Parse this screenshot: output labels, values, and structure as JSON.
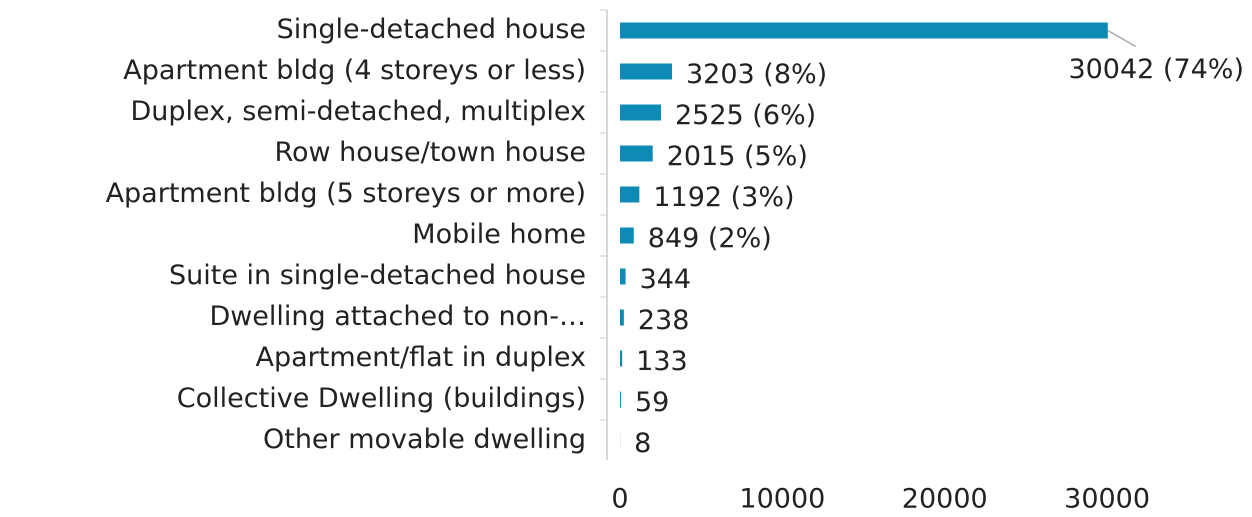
{
  "chart_data": {
    "type": "bar",
    "orientation": "horizontal",
    "categories": [
      "Single-detached house",
      "Apartment bldg (4 storeys or less)",
      "Duplex, semi-detached, multiplex",
      "Row house/town house",
      "Apartment bldg (5 storeys or more)",
      "Mobile home",
      "Suite in single-detached house",
      "Dwelling attached to non-…",
      "Apartment/flat in duplex",
      "Collective Dwelling (buildings)",
      "Other movable dwelling"
    ],
    "values": [
      30042,
      3203,
      2525,
      2015,
      1192,
      849,
      344,
      238,
      133,
      59,
      8
    ],
    "value_labels": [
      "30042 (74%)",
      "3203 (8%)",
      "2525 (6%)",
      "2015 (5%)",
      "1192 (3%)",
      "849 (2%)",
      "344",
      "238",
      "133",
      "59",
      "8"
    ],
    "color": "#0e8bb5",
    "xlim": [
      0,
      38000
    ],
    "xticks": [
      0,
      10000,
      20000,
      30000
    ],
    "grid": false
  }
}
